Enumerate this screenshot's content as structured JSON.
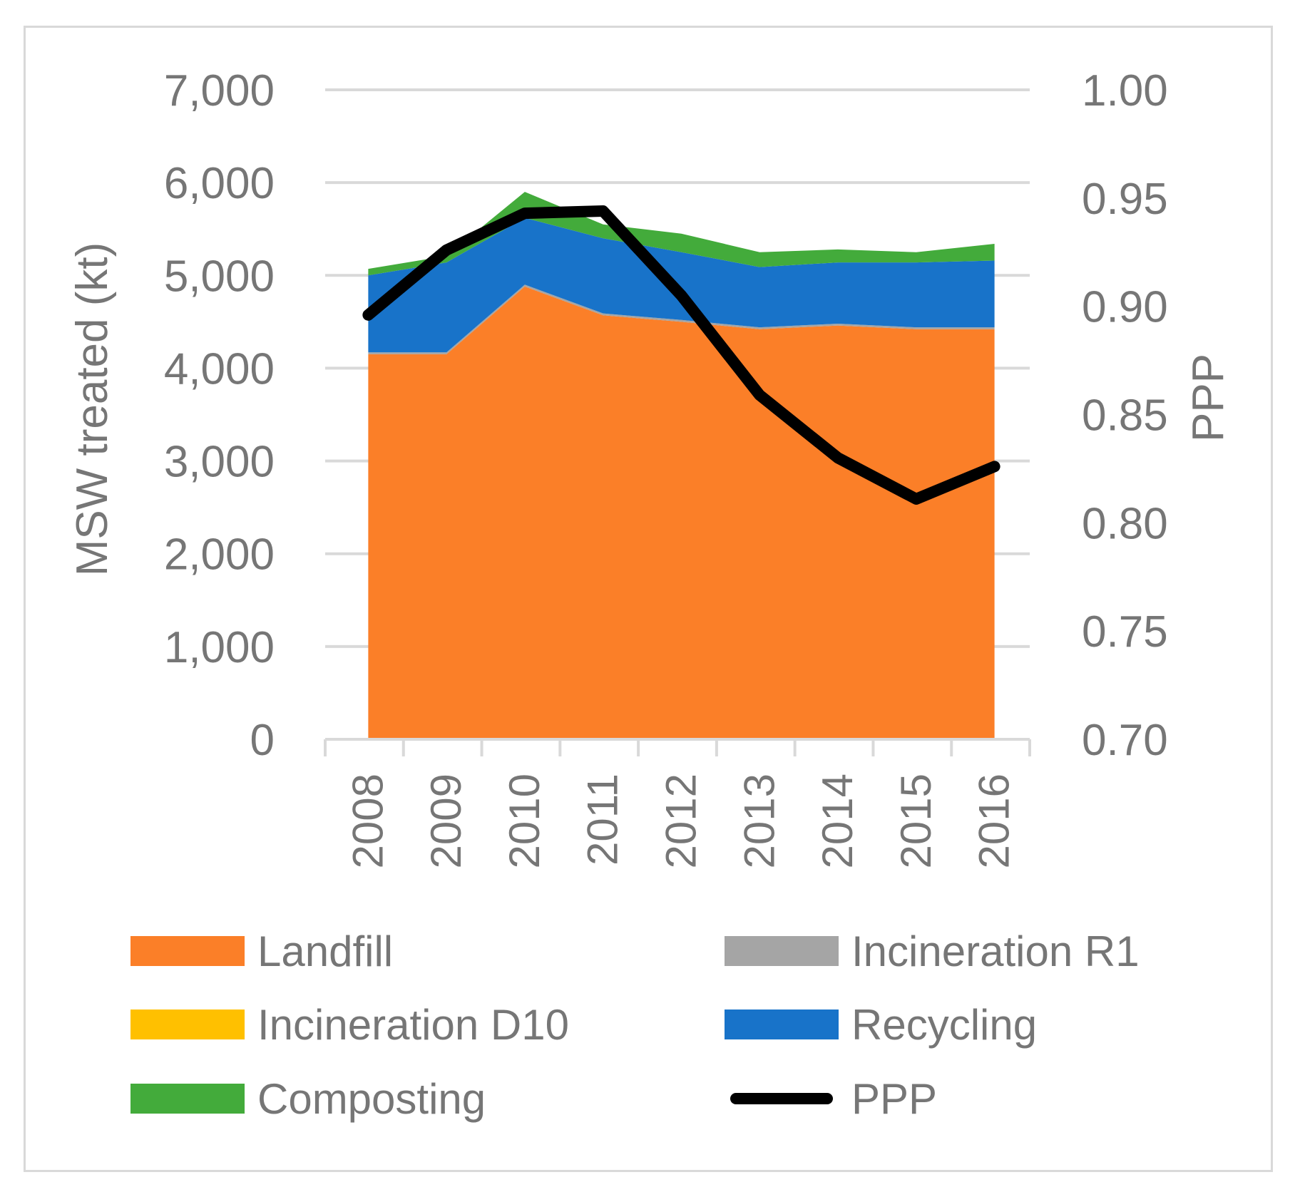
{
  "chart_data": {
    "type": "area",
    "title": "",
    "categories": [
      "2008",
      "2009",
      "2010",
      "2011",
      "2012",
      "2013",
      "2014",
      "2015",
      "2016"
    ],
    "series": [
      {
        "name": "Landfill",
        "kind": "stacked-area",
        "color": "#fb7f28",
        "values": [
          4150,
          4150,
          4880,
          4570,
          4500,
          4420,
          4460,
          4420,
          4420
        ]
      },
      {
        "name": "Incineration R1",
        "kind": "stacked-area",
        "color": "#a5a5a5",
        "values": [
          20,
          20,
          20,
          20,
          20,
          20,
          20,
          20,
          20
        ]
      },
      {
        "name": "Incineration D10",
        "kind": "stacked-area",
        "color": "#ffc000",
        "values": [
          0,
          0,
          0,
          0,
          0,
          0,
          0,
          0,
          0
        ]
      },
      {
        "name": "Recycling",
        "kind": "stacked-area",
        "color": "#1873c9",
        "values": [
          830,
          970,
          720,
          810,
          730,
          650,
          660,
          700,
          720
        ]
      },
      {
        "name": "Composting",
        "kind": "stacked-area",
        "color": "#43ab3b",
        "values": [
          70,
          70,
          280,
          150,
          200,
          160,
          140,
          110,
          180
        ]
      },
      {
        "name": "PPP",
        "kind": "line",
        "axis": "right",
        "color": "#000000",
        "values": [
          0.896,
          0.926,
          0.943,
          0.944,
          0.905,
          0.859,
          0.83,
          0.811,
          0.826
        ]
      }
    ],
    "ylabel": "MSW treated (kt)",
    "y2label": "PPP",
    "ylim": [
      0,
      7000
    ],
    "yticks": [
      "0",
      "1,000",
      "2,000",
      "3,000",
      "4,000",
      "5,000",
      "6,000",
      "7,000"
    ],
    "y2lim": [
      0.7,
      1.0
    ],
    "y2ticks": [
      "0.70",
      "0.75",
      "0.80",
      "0.85",
      "0.90",
      "0.95",
      "1.00"
    ],
    "grid": true,
    "legend_position": "bottom",
    "legend_order": [
      "Landfill",
      "Incineration R1",
      "Incineration D10",
      "Recycling",
      "Composting",
      "PPP"
    ]
  }
}
